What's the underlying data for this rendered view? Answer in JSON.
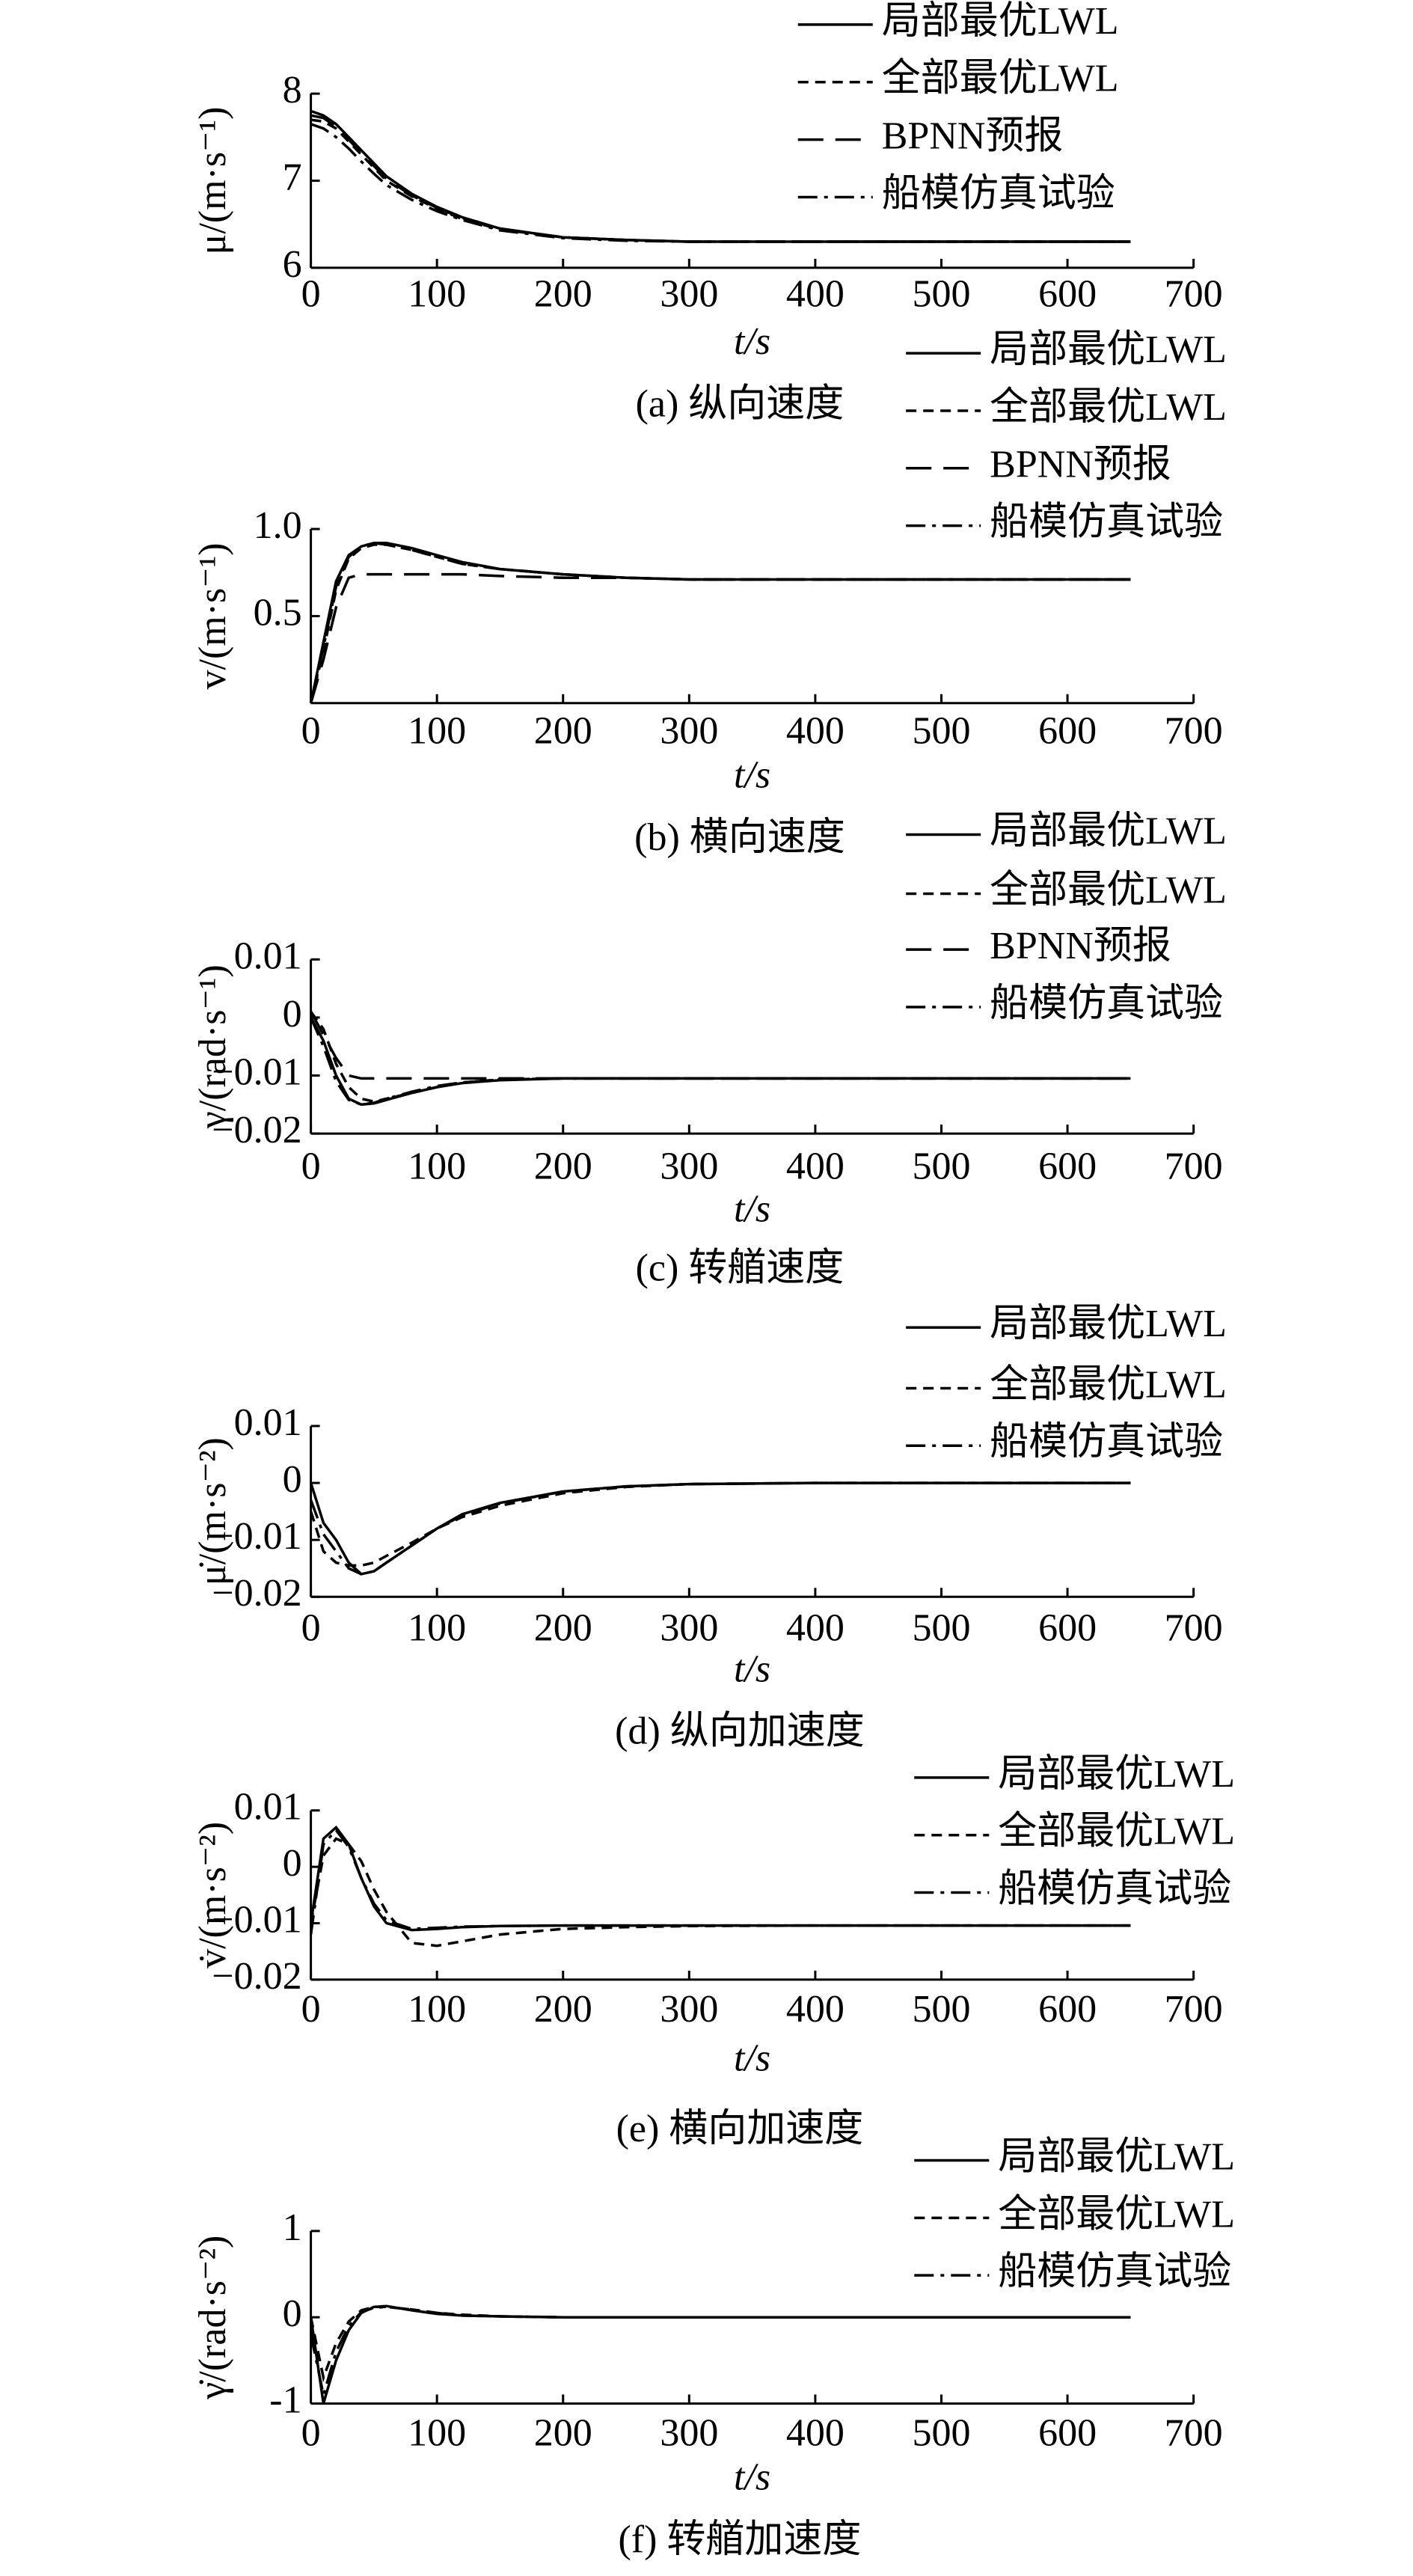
{
  "chart_data": [
    {
      "type": "line",
      "title": "(a) 纵向速度",
      "xlabel": "t/s",
      "ylabel": "μ/(m·s⁻¹)",
      "x": [
        0,
        10,
        20,
        30,
        40,
        50,
        60,
        80,
        100,
        120,
        150,
        200,
        250,
        300,
        400,
        500,
        650
      ],
      "xlim": [
        0,
        700
      ],
      "xticks": [
        0,
        100,
        200,
        300,
        400,
        500,
        600,
        700
      ],
      "ylim": [
        6,
        8
      ],
      "yticks": [
        6,
        7,
        8
      ],
      "series": [
        {
          "name": "局部最优LWL",
          "color": "#000000",
          "dash": "solid",
          "values": [
            7.8,
            7.75,
            7.65,
            7.5,
            7.35,
            7.2,
            7.05,
            6.85,
            6.7,
            6.58,
            6.45,
            6.35,
            6.32,
            6.3,
            6.3,
            6.3,
            6.3
          ]
        },
        {
          "name": "全部最优LWL",
          "color": "#000000",
          "dash": "dashed",
          "values": [
            7.7,
            7.68,
            7.6,
            7.45,
            7.3,
            7.15,
            7.0,
            6.82,
            6.68,
            6.56,
            6.44,
            6.35,
            6.32,
            6.3,
            6.3,
            6.3,
            6.3
          ]
        },
        {
          "name": "BPNN预报",
          "color": "#000000",
          "dash": "longdash",
          "values": [
            7.75,
            7.72,
            7.62,
            7.47,
            7.32,
            7.17,
            7.02,
            6.83,
            6.69,
            6.57,
            6.45,
            6.35,
            6.32,
            6.3,
            6.3,
            6.3,
            6.3
          ]
        },
        {
          "name": "船模仿真试验",
          "color": "#000000",
          "dash": "dashdot",
          "values": [
            7.65,
            7.6,
            7.5,
            7.37,
            7.22,
            7.08,
            6.95,
            6.78,
            6.65,
            6.55,
            6.43,
            6.34,
            6.31,
            6.3,
            6.3,
            6.3,
            6.3
          ]
        }
      ]
    },
    {
      "type": "line",
      "title": "(b) 横向速度",
      "xlabel": "t/s",
      "ylabel": "v/(m·s⁻¹)",
      "x": [
        0,
        10,
        20,
        30,
        40,
        50,
        60,
        80,
        100,
        120,
        150,
        200,
        250,
        300,
        400,
        500,
        650
      ],
      "xlim": [
        0,
        700
      ],
      "xticks": [
        0,
        100,
        200,
        300,
        400,
        500,
        600,
        700
      ],
      "ylim": [
        0,
        1
      ],
      "yticks": [
        0.5,
        {
          "value": 1,
          "label": "1.0"
        }
      ],
      "series": [
        {
          "name": "局部最优LWL",
          "color": "#000000",
          "dash": "solid",
          "values": [
            0,
            0.35,
            0.7,
            0.85,
            0.9,
            0.92,
            0.92,
            0.89,
            0.85,
            0.81,
            0.77,
            0.74,
            0.72,
            0.71,
            0.71,
            0.71,
            0.71
          ]
        },
        {
          "name": "全部最优LWL",
          "color": "#000000",
          "dash": "dashed",
          "values": [
            0,
            0.3,
            0.65,
            0.83,
            0.89,
            0.91,
            0.91,
            0.88,
            0.84,
            0.8,
            0.77,
            0.74,
            0.72,
            0.71,
            0.71,
            0.71,
            0.71
          ]
        },
        {
          "name": "BPNN预报",
          "color": "#000000",
          "dash": "longdash",
          "values": [
            0,
            0.25,
            0.55,
            0.72,
            0.74,
            0.74,
            0.74,
            0.74,
            0.74,
            0.74,
            0.73,
            0.72,
            0.72,
            0.71,
            0.71,
            0.71,
            0.71
          ]
        },
        {
          "name": "船模仿真试验",
          "color": "#000000",
          "dash": "dashdot",
          "values": [
            0,
            0.32,
            0.67,
            0.84,
            0.9,
            0.92,
            0.91,
            0.88,
            0.84,
            0.8,
            0.77,
            0.74,
            0.72,
            0.71,
            0.71,
            0.71,
            0.71
          ]
        }
      ]
    },
    {
      "type": "line",
      "title": "(c) 转艏速度",
      "xlabel": "t/s",
      "ylabel": "γ/(rad·s⁻¹)",
      "x": [
        0,
        10,
        20,
        30,
        40,
        50,
        60,
        80,
        100,
        120,
        150,
        200,
        250,
        300,
        400,
        500,
        650
      ],
      "xlim": [
        0,
        700
      ],
      "xticks": [
        0,
        100,
        200,
        300,
        400,
        500,
        600,
        700
      ],
      "ylim": [
        -0.02,
        0.01
      ],
      "yticks": [
        {
          "value": -0.02,
          "label": "−0.02"
        },
        {
          "value": -0.01,
          "label": "−0.01"
        },
        0,
        0.01
      ],
      "series": [
        {
          "name": "局部最优LWL",
          "color": "#000000",
          "dash": "solid",
          "values": [
            0,
            -0.004,
            -0.01,
            -0.014,
            -0.015,
            -0.0148,
            -0.0142,
            -0.013,
            -0.012,
            -0.0113,
            -0.0108,
            -0.0105,
            -0.0105,
            -0.0105,
            -0.0105,
            -0.0105,
            -0.0105
          ]
        },
        {
          "name": "全部最优LWL",
          "color": "#000000",
          "dash": "dashed",
          "values": [
            0.001,
            -0.002,
            -0.008,
            -0.012,
            -0.014,
            -0.0145,
            -0.014,
            -0.013,
            -0.012,
            -0.0112,
            -0.0107,
            -0.0105,
            -0.0105,
            -0.0105,
            -0.0105,
            -0.0105,
            -0.0105
          ]
        },
        {
          "name": "BPNN预报",
          "color": "#000000",
          "dash": "longdash",
          "values": [
            0.001,
            -0.003,
            -0.007,
            -0.01,
            -0.0105,
            -0.0105,
            -0.0105,
            -0.0105,
            -0.0105,
            -0.0105,
            -0.0105,
            -0.0105,
            -0.0105,
            -0.0105,
            -0.0105,
            -0.0105,
            -0.0105
          ]
        },
        {
          "name": "船模仿真试验",
          "color": "#000000",
          "dash": "dashdot",
          "values": [
            0,
            -0.005,
            -0.011,
            -0.0142,
            -0.015,
            -0.0147,
            -0.014,
            -0.0128,
            -0.0118,
            -0.0112,
            -0.0107,
            -0.0105,
            -0.0105,
            -0.0105,
            -0.0105,
            -0.0105,
            -0.0105
          ]
        }
      ]
    },
    {
      "type": "line",
      "title": "(d) 纵向加速度",
      "xlabel": "t/s",
      "ylabel": "μ̇/(m·s⁻²)",
      "x": [
        0,
        10,
        20,
        30,
        40,
        50,
        60,
        80,
        100,
        120,
        150,
        200,
        250,
        300,
        400,
        500,
        650
      ],
      "xlim": [
        0,
        700
      ],
      "xticks": [
        0,
        100,
        200,
        300,
        400,
        500,
        600,
        700
      ],
      "ylim": [
        -0.02,
        0.01
      ],
      "yticks": [
        {
          "value": -0.02,
          "label": "−0.02"
        },
        {
          "value": -0.01,
          "label": "−0.01"
        },
        0,
        0.01
      ],
      "series": [
        {
          "name": "局部最优LWL",
          "color": "#000000",
          "dash": "solid",
          "values": [
            0,
            -0.007,
            -0.01,
            -0.014,
            -0.016,
            -0.0155,
            -0.014,
            -0.011,
            -0.008,
            -0.0055,
            -0.0035,
            -0.0015,
            -0.0006,
            -0.0002,
            0,
            0,
            0
          ]
        },
        {
          "name": "全部最优LWL",
          "color": "#000000",
          "dash": "dashed",
          "values": [
            -0.005,
            -0.012,
            -0.014,
            -0.0145,
            -0.0145,
            -0.014,
            -0.0128,
            -0.0105,
            -0.008,
            -0.006,
            -0.004,
            -0.0018,
            -0.0007,
            -0.0002,
            0,
            0,
            0
          ]
        },
        {
          "name": "船模仿真试验",
          "color": "#000000",
          "dash": "dashdot",
          "values": [
            -0.003,
            -0.009,
            -0.012,
            -0.015,
            -0.016,
            -0.0155,
            -0.014,
            -0.011,
            -0.008,
            -0.0057,
            -0.0036,
            -0.0015,
            -0.0006,
            -0.0002,
            0,
            0,
            0
          ]
        }
      ]
    },
    {
      "type": "line",
      "title": "(e) 横向加速度",
      "xlabel": "t/s",
      "ylabel": "v̇/(m·s⁻²)",
      "x": [
        0,
        10,
        20,
        30,
        40,
        50,
        60,
        80,
        100,
        120,
        150,
        200,
        250,
        300,
        400,
        500,
        650
      ],
      "xlim": [
        0,
        700
      ],
      "xticks": [
        0,
        100,
        200,
        300,
        400,
        500,
        600,
        700
      ],
      "ylim": [
        -0.02,
        0.01
      ],
      "yticks": [
        {
          "value": -0.02,
          "label": "−0.02"
        },
        {
          "value": -0.01,
          "label": "−0.01"
        },
        0,
        0.01
      ],
      "series": [
        {
          "name": "局部最优LWL",
          "color": "#000000",
          "dash": "solid",
          "values": [
            -0.01,
            0.005,
            0.007,
            0.004,
            -0.002,
            -0.007,
            -0.01,
            -0.0112,
            -0.011,
            -0.0107,
            -0.0105,
            -0.0104,
            -0.0104,
            -0.0104,
            -0.0104,
            -0.0104,
            -0.0104
          ]
        },
        {
          "name": "全部最优LWL",
          "color": "#000000",
          "dash": "dashed",
          "values": [
            -0.01,
            0.002,
            0.005,
            0.004,
            0.001,
            -0.004,
            -0.008,
            -0.0135,
            -0.014,
            -0.0132,
            -0.012,
            -0.011,
            -0.0107,
            -0.0105,
            -0.0104,
            -0.0104,
            -0.0104
          ]
        },
        {
          "name": "船模仿真试验",
          "color": "#000000",
          "dash": "dashdot",
          "values": [
            -0.012,
            0.004,
            0.0065,
            0.0035,
            -0.002,
            -0.0065,
            -0.0095,
            -0.011,
            -0.0108,
            -0.0106,
            -0.0105,
            -0.0104,
            -0.0104,
            -0.0104,
            -0.0104,
            -0.0104,
            -0.0104
          ]
        }
      ]
    },
    {
      "type": "line",
      "title": "(f) 转艏加速度",
      "xlabel": "t/s",
      "ylabel": "γ̇/(rad·s⁻²)",
      "x": [
        0,
        10,
        20,
        30,
        40,
        50,
        60,
        80,
        100,
        120,
        150,
        200,
        250,
        300,
        400,
        500,
        650
      ],
      "xlim": [
        0,
        700
      ],
      "xticks": [
        0,
        100,
        200,
        300,
        400,
        500,
        600,
        700
      ],
      "ylim": [
        -1,
        1
      ],
      "yticks": [
        -1,
        0,
        1
      ],
      "series": [
        {
          "name": "局部最优LWL",
          "color": "#000000",
          "dash": "solid",
          "values": [
            0,
            -1,
            -0.5,
            -0.15,
            0.05,
            0.12,
            0.13,
            0.08,
            0.04,
            0.02,
            0.01,
            0,
            0,
            0,
            0,
            0,
            0
          ]
        },
        {
          "name": "全部最优LWL",
          "color": "#000000",
          "dash": "dashed",
          "values": [
            0,
            -0.7,
            -0.3,
            -0.05,
            0.08,
            0.12,
            0.12,
            0.09,
            0.05,
            0.03,
            0.01,
            0,
            0,
            0,
            0,
            0,
            0
          ]
        },
        {
          "name": "船模仿真试验",
          "color": "#000000",
          "dash": "dashdot",
          "values": [
            -0.2,
            -0.9,
            -0.4,
            -0.1,
            0.06,
            0.11,
            0.12,
            0.09,
            0.05,
            0.02,
            0.01,
            0,
            0,
            0,
            0,
            0,
            0
          ]
        }
      ]
    }
  ]
}
